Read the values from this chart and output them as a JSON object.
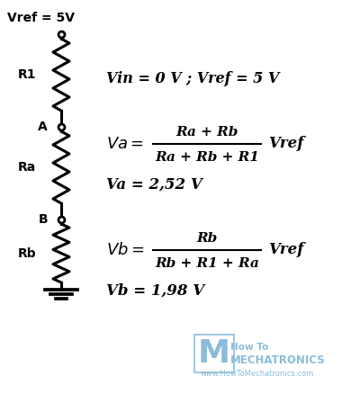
{
  "bg_color": "#ffffff",
  "circuit": {
    "wire_color": "#000000",
    "line_width": 2.2,
    "vref_label": "Vref = 5V",
    "r1_label": "R1",
    "ra_label": "Ra",
    "rb_label": "Rb",
    "a_label": "A",
    "b_label": "B"
  },
  "equations": {
    "eq1": "Vin = 0 V ; Vref = 5 V",
    "va_formula_num": "Ra + Rb",
    "va_formula_den": "Ra + Rb + R1",
    "va_vref": "Vref",
    "va_result": "Va = 2,52 V",
    "vb_formula_num": "Rb",
    "vb_formula_den": "Rb + R1 + Ra",
    "vb_vref": "Vref",
    "vb_result": "Vb = 1,98 V"
  },
  "watermark": {
    "color": "#8bbcda",
    "line1": "How To",
    "line2": "MECHATRONICS",
    "url": "www.HowToMechatronics.com"
  },
  "figsize": [
    4.0,
    4.38
  ],
  "dpi": 100
}
